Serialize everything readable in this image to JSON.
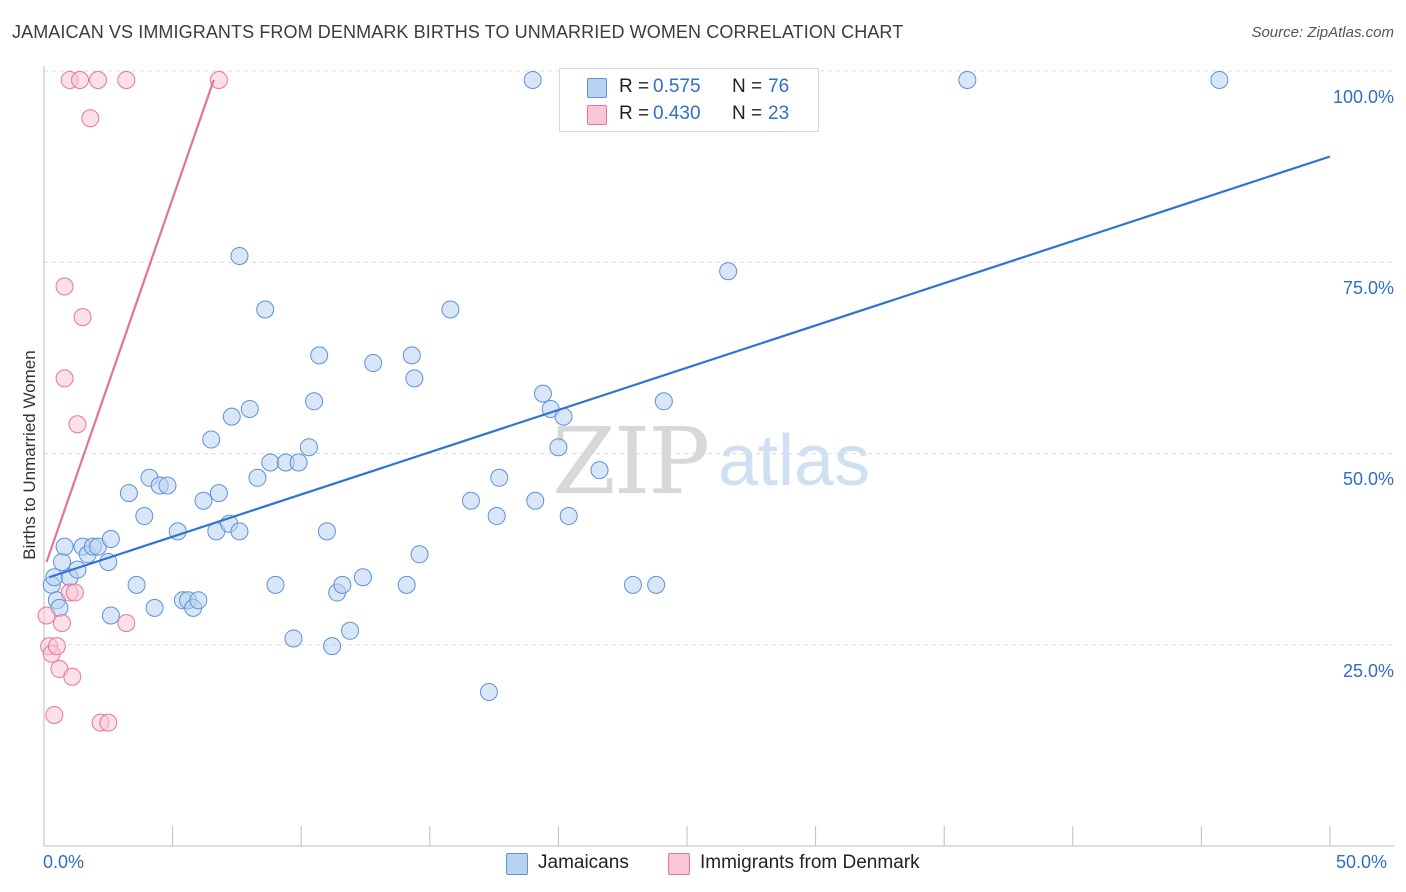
{
  "header": {
    "title": "JAMAICAN VS IMMIGRANTS FROM DENMARK BIRTHS TO UNMARRIED WOMEN CORRELATION CHART",
    "source": "Source: ZipAtlas.com"
  },
  "watermark": {
    "zip": "ZIP",
    "atlas": "atlas"
  },
  "legend": {
    "rows": [
      {
        "r_label": "R =",
        "r_value": "0.575",
        "n_label": "N =",
        "n_value": "76",
        "color": "#8ab4e8"
      },
      {
        "r_label": "R =",
        "r_value": "0.430",
        "n_label": "N =",
        "n_value": "23",
        "color": "#f2a3bb"
      }
    ]
  },
  "chart_data": {
    "type": "scatter",
    "title": "JAMAICAN VS IMMIGRANTS FROM DENMARK BIRTHS TO UNMARRIED WOMEN CORRELATION CHART",
    "xlabel": "",
    "ylabel": "Births to Unmarried Women",
    "xlim": [
      0,
      50
    ],
    "ylim": [
      0,
      100
    ],
    "x_tick_labels": {
      "min": "0.0%",
      "max": "50.0%"
    },
    "y_tick_labels": [
      "100.0%",
      "75.0%",
      "50.0%",
      "25.0%"
    ],
    "y_ticks": [
      100,
      75,
      50,
      25
    ],
    "grid": true,
    "legend_position": "bottom",
    "series": [
      {
        "name": "Jamaicans",
        "color": "#5b93d8",
        "fill": "#b9d2f1",
        "trend": {
          "x": [
            0.2,
            50
          ],
          "y": [
            35,
            90
          ]
        },
        "points": [
          [
            0.3,
            34
          ],
          [
            0.4,
            35
          ],
          [
            0.5,
            32
          ],
          [
            0.6,
            31
          ],
          [
            0.7,
            37
          ],
          [
            0.8,
            39
          ],
          [
            1.0,
            35
          ],
          [
            1.3,
            36
          ],
          [
            1.5,
            39
          ],
          [
            1.7,
            38
          ],
          [
            1.9,
            39
          ],
          [
            2.1,
            39
          ],
          [
            2.5,
            37
          ],
          [
            2.6,
            40
          ],
          [
            2.6,
            30
          ],
          [
            3.3,
            46
          ],
          [
            3.6,
            34
          ],
          [
            3.9,
            43
          ],
          [
            4.1,
            48
          ],
          [
            4.3,
            31
          ],
          [
            4.5,
            47
          ],
          [
            4.8,
            47
          ],
          [
            5.2,
            41
          ],
          [
            5.4,
            32
          ],
          [
            5.6,
            32
          ],
          [
            5.8,
            31
          ],
          [
            6.0,
            32
          ],
          [
            6.2,
            45
          ],
          [
            6.7,
            41
          ],
          [
            6.8,
            46
          ],
          [
            6.5,
            53
          ],
          [
            7.2,
            42
          ],
          [
            7.3,
            56
          ],
          [
            7.6,
            41
          ],
          [
            7.6,
            77
          ],
          [
            8.0,
            57
          ],
          [
            8.3,
            48
          ],
          [
            8.6,
            70
          ],
          [
            8.8,
            50
          ],
          [
            9.0,
            34
          ],
          [
            9.4,
            50
          ],
          [
            9.7,
            27
          ],
          [
            9.9,
            50
          ],
          [
            10.3,
            52
          ],
          [
            10.5,
            58
          ],
          [
            10.7,
            64
          ],
          [
            11.0,
            41
          ],
          [
            11.2,
            26
          ],
          [
            11.4,
            33
          ],
          [
            11.6,
            34
          ],
          [
            11.9,
            28
          ],
          [
            12.4,
            35
          ],
          [
            12.8,
            63
          ],
          [
            14.1,
            34
          ],
          [
            14.3,
            64
          ],
          [
            14.4,
            61
          ],
          [
            14.6,
            38
          ],
          [
            15.8,
            70
          ],
          [
            16.6,
            45
          ],
          [
            17.3,
            20
          ],
          [
            17.6,
            43
          ],
          [
            17.7,
            48
          ],
          [
            19.1,
            45
          ],
          [
            19.4,
            59
          ],
          [
            19.7,
            57
          ],
          [
            20.0,
            52
          ],
          [
            20.2,
            56
          ],
          [
            20.4,
            43
          ],
          [
            21.6,
            49
          ],
          [
            22.9,
            34
          ],
          [
            23.8,
            34
          ],
          [
            24.1,
            58
          ],
          [
            26.6,
            75
          ],
          [
            19.0,
            100
          ],
          [
            35.9,
            100
          ],
          [
            45.7,
            100
          ]
        ]
      },
      {
        "name": "Immigrants from Denmark",
        "color": "#e8759b",
        "fill": "#f8c6d5",
        "trend": {
          "x": [
            0.1,
            6.6
          ],
          "y": [
            37,
            100
          ]
        },
        "points": [
          [
            0.1,
            30
          ],
          [
            0.2,
            26
          ],
          [
            0.3,
            25
          ],
          [
            0.4,
            17
          ],
          [
            0.5,
            26
          ],
          [
            0.6,
            23
          ],
          [
            0.7,
            29
          ],
          [
            0.8,
            73
          ],
          [
            0.8,
            61
          ],
          [
            1.0,
            33
          ],
          [
            1.1,
            22
          ],
          [
            1.2,
            33
          ],
          [
            1.3,
            55
          ],
          [
            1.5,
            69
          ],
          [
            1.8,
            95
          ],
          [
            1.0,
            100
          ],
          [
            1.4,
            100
          ],
          [
            2.1,
            100
          ],
          [
            2.2,
            16
          ],
          [
            2.5,
            16
          ],
          [
            3.2,
            29
          ],
          [
            3.2,
            100
          ],
          [
            6.8,
            100
          ]
        ]
      }
    ]
  }
}
